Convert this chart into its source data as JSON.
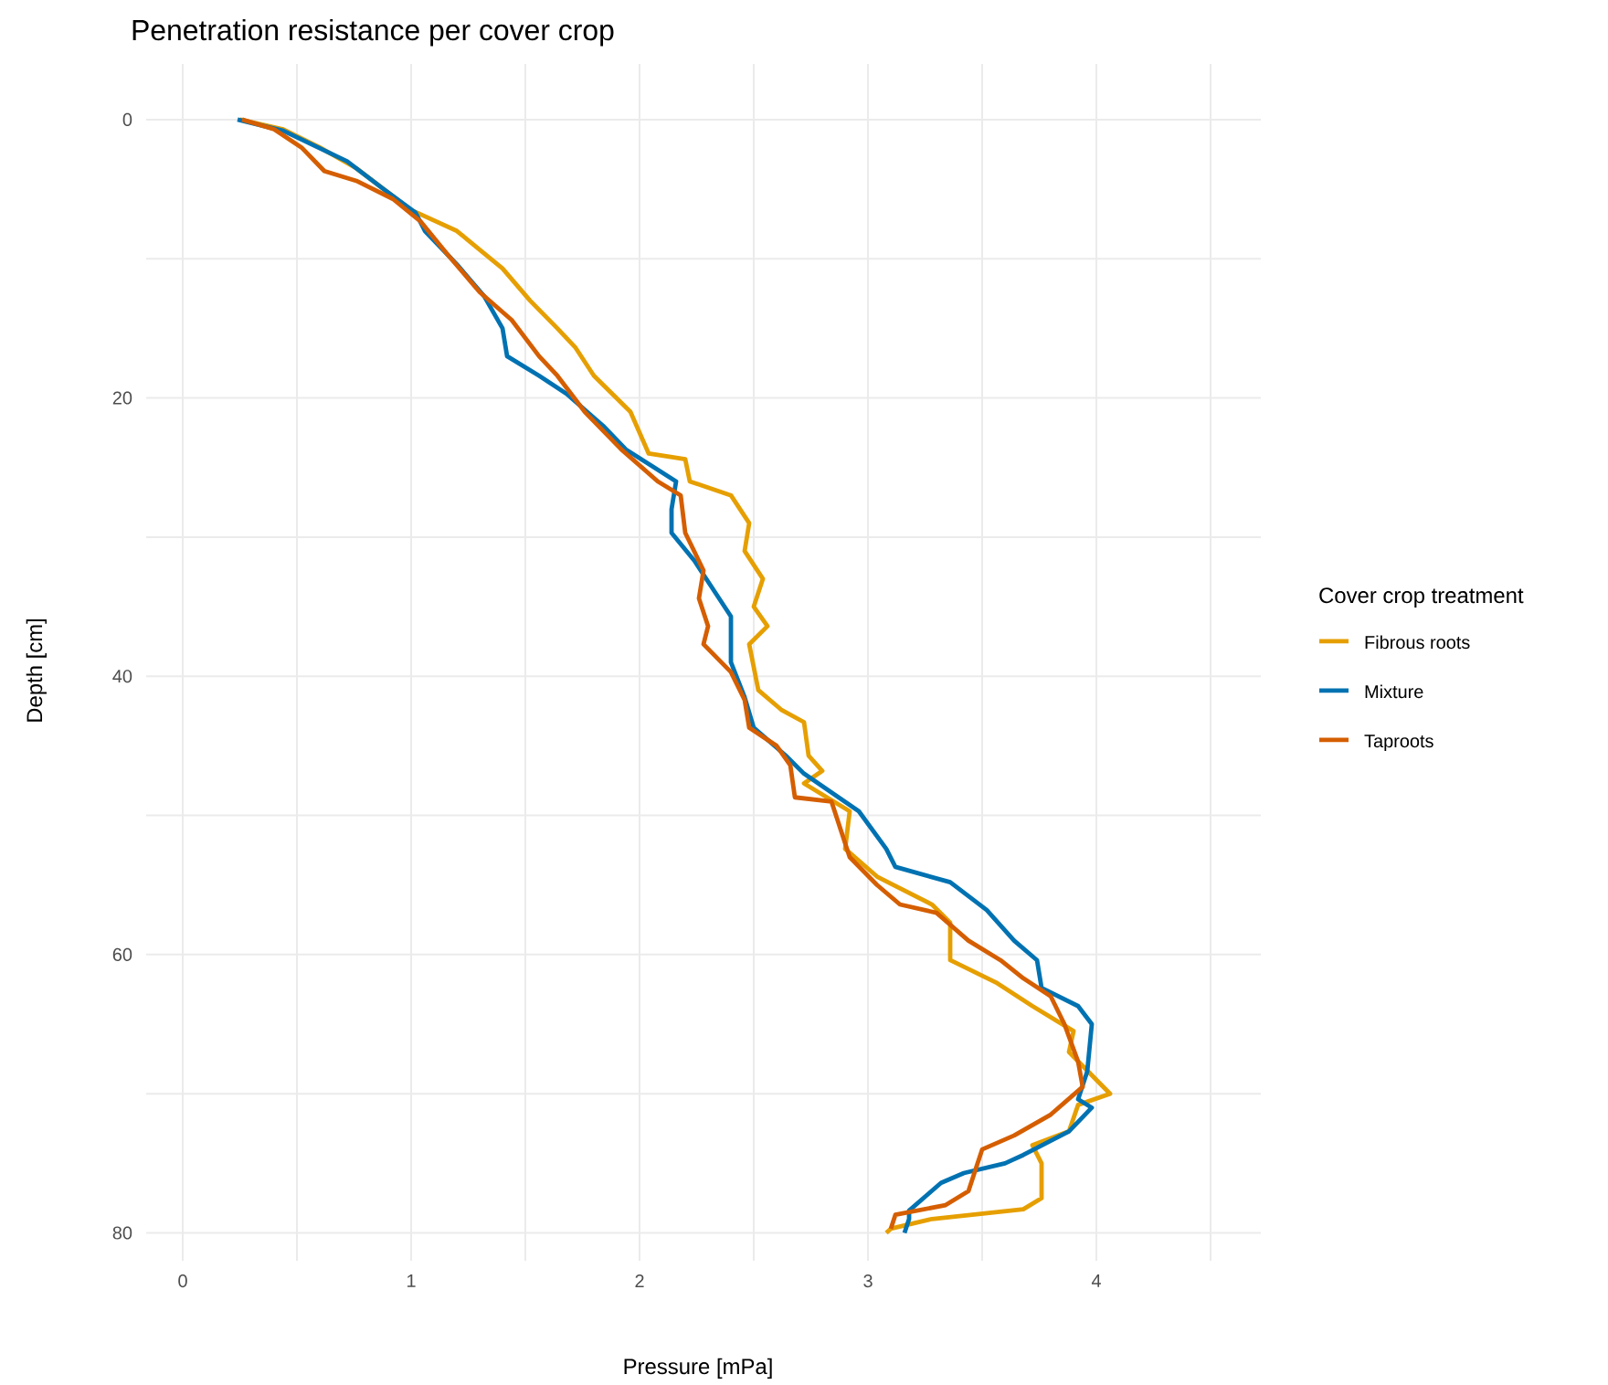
{
  "chart_data": {
    "type": "line",
    "title": "Penetration resistance per cover crop",
    "xlabel": "Pressure [mPa]",
    "ylabel": "Depth [cm]",
    "legend_title": "Cover crop treatment",
    "legend": "right",
    "grid": true,
    "line_style": "solid",
    "xlim": [
      -0.16,
      4.72
    ],
    "ylim": [
      82,
      -4
    ],
    "xticks": [
      0,
      {
        "value": 0.5,
        "label": null
      },
      1,
      {
        "value": 1.5,
        "label": null
      },
      2,
      {
        "value": 2.5,
        "label": null
      },
      3,
      {
        "value": 3.5,
        "label": null
      },
      4,
      {
        "value": 4.5,
        "label": null
      }
    ],
    "yticks": [
      0,
      {
        "value": 10,
        "label": null
      },
      20,
      {
        "value": 30,
        "label": null
      },
      40,
      {
        "value": 50,
        "label": null
      },
      60,
      {
        "value": 70,
        "label": null
      },
      80
    ],
    "series": [
      {
        "name": "Fibrous roots",
        "color": "#e69f00",
        "x": [
          0.25,
          0.44,
          0.6,
          0.76,
          0.92,
          1.0,
          1.2,
          1.4,
          1.52,
          1.64,
          1.72,
          1.8,
          1.96,
          2.04,
          2.2,
          2.22,
          2.4,
          2.48,
          2.46,
          2.54,
          2.5,
          2.56,
          2.48,
          2.52,
          2.62,
          2.72,
          2.74,
          2.8,
          2.72,
          2.92,
          2.9,
          3.04,
          3.28,
          3.36,
          3.36,
          3.56,
          3.72,
          3.9,
          3.88,
          4.06,
          3.92,
          3.88,
          3.72,
          3.76,
          3.76,
          3.68,
          3.28,
          3.1,
          3.08
        ],
        "values": [
          0,
          0.7,
          2,
          3.5,
          5.5,
          6.5,
          8,
          10.7,
          13,
          15,
          16.4,
          18.4,
          21,
          24,
          24.4,
          26,
          27,
          29,
          31,
          33,
          35,
          36.4,
          37.7,
          41,
          42.4,
          43.3,
          45.7,
          46.8,
          47.7,
          49.7,
          52.4,
          54.4,
          56.4,
          57.7,
          60.4,
          62,
          63.7,
          65.5,
          67,
          70,
          70.8,
          72.7,
          73.7,
          75,
          77.5,
          78.3,
          79,
          79.7,
          80
        ]
      },
      {
        "name": "Mixture",
        "color": "#0072b2",
        "x": [
          0.24,
          0.44,
          0.72,
          0.88,
          1.02,
          1.06,
          1.2,
          1.32,
          1.4,
          1.42,
          1.56,
          1.68,
          1.84,
          1.94,
          2.16,
          2.14,
          2.14,
          2.24,
          2.32,
          2.4,
          2.4,
          2.46,
          2.5,
          2.64,
          2.72,
          2.96,
          3.08,
          3.12,
          3.36,
          3.52,
          3.64,
          3.74,
          3.76,
          3.92,
          3.98,
          3.96,
          3.92,
          3.98,
          3.88,
          3.68,
          3.6,
          3.42,
          3.32,
          3.18,
          3.18,
          3.16
        ],
        "values": [
          0,
          0.8,
          3,
          5,
          6.7,
          8,
          10.4,
          12.7,
          15,
          17,
          18.4,
          19.7,
          22,
          23.7,
          26,
          28,
          29.7,
          31.7,
          33.7,
          35.7,
          39,
          41.5,
          43.7,
          45.7,
          47,
          49.7,
          52.4,
          53.7,
          54.8,
          56.8,
          59,
          60.4,
          62.4,
          63.7,
          65,
          68.4,
          70.4,
          71,
          72.7,
          74.4,
          75,
          75.7,
          76.4,
          78.4,
          79,
          80
        ]
      },
      {
        "name": "Taproots",
        "color": "#d55e00",
        "x": [
          0.26,
          0.4,
          0.52,
          0.62,
          0.76,
          0.92,
          1.04,
          1.16,
          1.3,
          1.44,
          1.56,
          1.64,
          1.76,
          1.92,
          2.08,
          2.18,
          2.2,
          2.28,
          2.26,
          2.3,
          2.28,
          2.4,
          2.46,
          2.48,
          2.6,
          2.66,
          2.68,
          2.84,
          2.88,
          2.92,
          3.04,
          3.14,
          3.3,
          3.44,
          3.58,
          3.68,
          3.8,
          3.86,
          3.92,
          3.94,
          3.8,
          3.64,
          3.5,
          3.48,
          3.44,
          3.34,
          3.12,
          3.1
        ],
        "values": [
          0,
          0.7,
          2,
          3.7,
          4.4,
          5.7,
          7.3,
          9.7,
          12.4,
          14.4,
          17,
          18.4,
          21,
          23.7,
          26,
          27,
          29.7,
          32.4,
          34.4,
          36.4,
          37.7,
          39.7,
          41.7,
          43.7,
          45,
          46.4,
          48.7,
          49,
          51,
          53,
          55,
          56.4,
          57,
          59,
          60.4,
          61.7,
          63,
          65,
          67.7,
          69.5,
          71.5,
          73,
          74,
          75,
          77,
          78,
          78.7,
          79.7
        ]
      }
    ]
  }
}
